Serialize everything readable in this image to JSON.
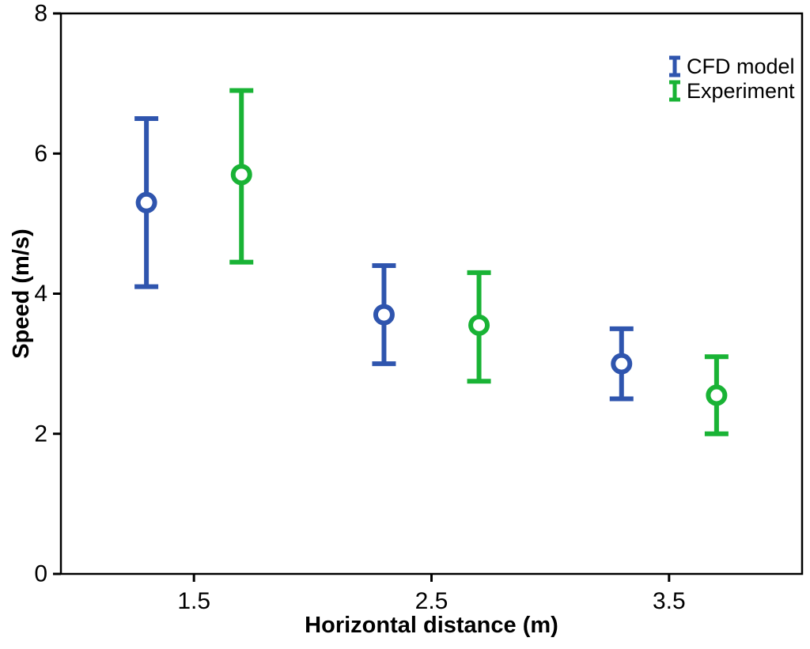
{
  "chart_data": {
    "type": "scatter",
    "subtype": "points-with-error-bars",
    "title": "",
    "xlabel": "Horizontal distance (m)",
    "ylabel": "Speed (m/s)",
    "xlim": [
      0.94,
      4.06
    ],
    "ylim": [
      0,
      8
    ],
    "x_ticks": [
      1.5,
      2.5,
      3.5
    ],
    "x_tick_labels": [
      "1.5",
      "2.5",
      "3.5"
    ],
    "y_ticks": [
      0,
      2,
      4,
      6,
      8
    ],
    "y_tick_labels": [
      "0",
      "2",
      "4",
      "6",
      "8"
    ],
    "grid": false,
    "legend_position": "top-right-inside",
    "marker": "open-circle",
    "colors": {
      "cfd_model": "#2F55AE",
      "experiment": "#19B335",
      "axis": "#000000",
      "background": "#ffffff"
    },
    "series": [
      {
        "name": "CFD model",
        "color": "#2F55AE",
        "points": [
          {
            "x": 1.3,
            "y": 5.3,
            "y_low": 4.1,
            "y_high": 6.5
          },
          {
            "x": 2.3,
            "y": 3.7,
            "y_low": 3.0,
            "y_high": 4.4
          },
          {
            "x": 3.3,
            "y": 3.0,
            "y_low": 2.5,
            "y_high": 3.5
          }
        ]
      },
      {
        "name": "Experiment",
        "color": "#19B335",
        "points": [
          {
            "x": 1.7,
            "y": 5.7,
            "y_low": 4.45,
            "y_high": 6.9
          },
          {
            "x": 2.7,
            "y": 3.55,
            "y_low": 2.75,
            "y_high": 4.3
          },
          {
            "x": 3.7,
            "y": 2.55,
            "y_low": 2.0,
            "y_high": 3.1
          }
        ]
      }
    ]
  }
}
